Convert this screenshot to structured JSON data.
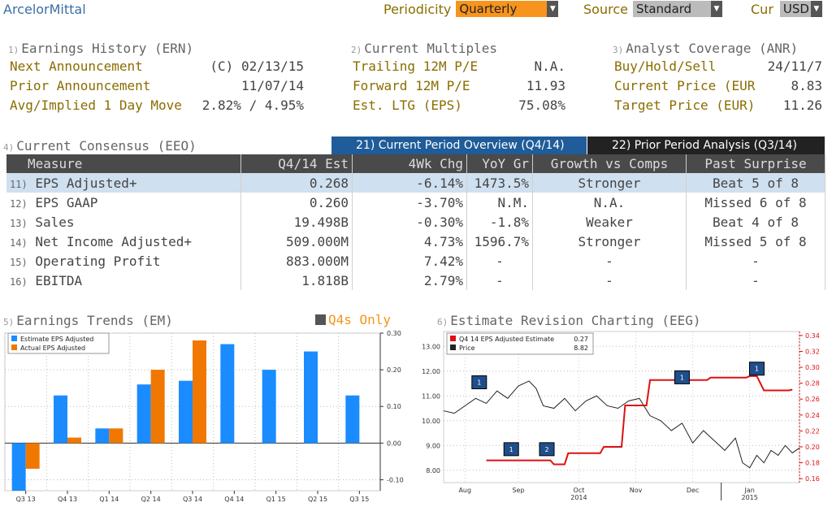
{
  "header": {
    "brand": "ArcelorMittal",
    "periodicity_label": "Periodicity",
    "periodicity_value": "Quarterly",
    "source_label": "Source",
    "source_value": "Standard",
    "cur_label": "Cur",
    "cur_value": "USD"
  },
  "ern": {
    "idx": "1)",
    "title": "Earnings History (ERN)",
    "rows": [
      {
        "label": "Next Announcement",
        "value": "(C)  02/13/15"
      },
      {
        "label": "Prior Announcement",
        "value": "11/07/14"
      },
      {
        "label": "Avg/Implied 1 Day Move",
        "value": "2.82% / 4.95%"
      }
    ]
  },
  "multiples": {
    "idx": "2)",
    "title": "Current Multiples",
    "rows": [
      {
        "label": "Trailing 12M P/E",
        "value": "N.A."
      },
      {
        "label": "Forward 12M P/E",
        "value": "11.93"
      },
      {
        "label": "Est. LTG (EPS)",
        "value": "75.08%"
      }
    ]
  },
  "anr": {
    "idx": "3)",
    "title": "Analyst Coverage (ANR)",
    "rows": [
      {
        "label": "Buy/Hold/Sell",
        "value": "24/11/7"
      },
      {
        "label": "Current Price (EUR",
        "value": "8.83"
      },
      {
        "label": "Target Price (EUR)",
        "value": "11.26"
      }
    ]
  },
  "consensus": {
    "idx": "4)",
    "title": "Current Consensus (EEO)",
    "tab_current": "21) Current Period Overview (Q4/14)",
    "tab_prior": "22) Prior Period Analysis (Q3/14)",
    "columns": [
      "Measure",
      "Q4/14 Est",
      "4Wk Chg",
      "YoY Gr",
      "Growth vs Comps",
      "Past Surprise"
    ],
    "rows": [
      {
        "num": "11)",
        "measure": "EPS Adjusted+",
        "est": "0.268",
        "chg": "-6.14%",
        "yoy": "1473.5%",
        "comps": "Stronger",
        "surprise": "Beat 5 of 8"
      },
      {
        "num": "12)",
        "measure": "EPS GAAP",
        "est": "0.260",
        "chg": "-3.70%",
        "yoy": "N.M.",
        "comps": "N.A.",
        "surprise": "Missed 6 of 8"
      },
      {
        "num": "13)",
        "measure": "Sales",
        "est": "19.498B",
        "chg": "-0.30%",
        "yoy": "-1.8%",
        "comps": "Weaker",
        "surprise": "Beat 4 of 8"
      },
      {
        "num": "14)",
        "measure": "Net Income Adjusted+",
        "est": "509.000M",
        "chg": "4.73%",
        "yoy": "1596.7%",
        "comps": "Stronger",
        "surprise": "Missed 5 of 8"
      },
      {
        "num": "15)",
        "measure": "Operating Profit",
        "est": "883.000M",
        "chg": "7.42%",
        "yoy": "-",
        "comps": "-",
        "surprise": "-"
      },
      {
        "num": "16)",
        "measure": "EBITDA",
        "est": "1.818B",
        "chg": "2.79%",
        "yoy": "-",
        "comps": "-",
        "surprise": "-"
      }
    ]
  },
  "trends": {
    "idx": "5)",
    "title": "Earnings Trends (EM)",
    "q4_label": "Q4s Only"
  },
  "revision": {
    "idx": "6)",
    "title": "Estimate Revision Charting (EEG)"
  },
  "colors": {
    "estimate": "#1a8cff",
    "actual": "#f07800",
    "eps_line": "#d11",
    "price_line": "#222",
    "accent": "#f7941d"
  },
  "chart_data": [
    {
      "type": "bar",
      "categories": [
        "Q3 13",
        "Q4 13",
        "Q1 14",
        "Q2 14",
        "Q3 14",
        "Q4 14",
        "Q1 15",
        "Q2 15",
        "Q3 15"
      ],
      "series": [
        {
          "name": "Estimate EPS Adjusted",
          "values": [
            -0.13,
            0.13,
            0.04,
            0.16,
            0.17,
            0.27,
            0.2,
            0.25,
            0.13
          ]
        },
        {
          "name": "Actual EPS Adjusted",
          "values": [
            -0.07,
            0.015,
            0.04,
            0.2,
            0.28,
            null,
            null,
            null,
            null
          ]
        }
      ],
      "ylim": [
        -0.13,
        0.3
      ],
      "yticks": [
        "0.30",
        "0.20",
        "0.10",
        "0.00",
        "-0.10"
      ],
      "ytick_values": [
        0.3,
        0.2,
        0.1,
        0.0,
        -0.1
      ]
    },
    {
      "type": "line",
      "legend": [
        {
          "name": "Q4 14 EPS Adjusted Estimate",
          "value": "0.27"
        },
        {
          "name": "Price",
          "value": "8.82"
        }
      ],
      "x_labels": [
        "Aug",
        "Sep",
        "Oct",
        "Nov",
        "Dec",
        "Jan"
      ],
      "year_labels": [
        "2014",
        "2015"
      ],
      "left_axis": {
        "ticks": [
          "13.00",
          "12.00",
          "11.00",
          "10.00",
          "9.00",
          "8.00"
        ],
        "values": [
          13,
          12,
          11,
          10,
          9,
          8
        ],
        "range": [
          7.5,
          13.6
        ]
      },
      "right_axis": {
        "ticks": [
          "0.34",
          "0.32",
          "0.30",
          "0.28",
          "0.26",
          "0.24",
          "0.22",
          "0.20",
          "0.18",
          "0.16"
        ],
        "values": [
          0.34,
          0.32,
          0.3,
          0.28,
          0.26,
          0.24,
          0.22,
          0.2,
          0.18,
          0.16
        ],
        "range": [
          0.155,
          0.345
        ]
      },
      "eps_series": [
        {
          "d": 0.12,
          "v": 0.183
        },
        {
          "d": 0.3,
          "v": 0.183
        },
        {
          "d": 0.31,
          "v": 0.178
        },
        {
          "d": 0.34,
          "v": 0.178
        },
        {
          "d": 0.35,
          "v": 0.192
        },
        {
          "d": 0.44,
          "v": 0.192
        },
        {
          "d": 0.45,
          "v": 0.2
        },
        {
          "d": 0.5,
          "v": 0.2
        },
        {
          "d": 0.51,
          "v": 0.252
        },
        {
          "d": 0.57,
          "v": 0.252
        },
        {
          "d": 0.58,
          "v": 0.284
        },
        {
          "d": 0.74,
          "v": 0.284
        },
        {
          "d": 0.75,
          "v": 0.287
        },
        {
          "d": 0.85,
          "v": 0.287
        },
        {
          "d": 0.86,
          "v": 0.289
        },
        {
          "d": 0.88,
          "v": 0.289
        },
        {
          "d": 0.9,
          "v": 0.271
        },
        {
          "d": 0.97,
          "v": 0.271
        },
        {
          "d": 0.98,
          "v": 0.272
        }
      ],
      "price_series": [
        {
          "d": 0.0,
          "v": 10.4
        },
        {
          "d": 0.03,
          "v": 10.3
        },
        {
          "d": 0.06,
          "v": 10.6
        },
        {
          "d": 0.09,
          "v": 10.9
        },
        {
          "d": 0.12,
          "v": 10.7
        },
        {
          "d": 0.15,
          "v": 11.2
        },
        {
          "d": 0.18,
          "v": 10.9
        },
        {
          "d": 0.21,
          "v": 11.4
        },
        {
          "d": 0.24,
          "v": 11.6
        },
        {
          "d": 0.26,
          "v": 11.3
        },
        {
          "d": 0.28,
          "v": 10.6
        },
        {
          "d": 0.31,
          "v": 10.5
        },
        {
          "d": 0.34,
          "v": 10.9
        },
        {
          "d": 0.37,
          "v": 10.4
        },
        {
          "d": 0.4,
          "v": 10.8
        },
        {
          "d": 0.43,
          "v": 11.0
        },
        {
          "d": 0.46,
          "v": 10.6
        },
        {
          "d": 0.49,
          "v": 10.5
        },
        {
          "d": 0.52,
          "v": 10.8
        },
        {
          "d": 0.55,
          "v": 10.9
        },
        {
          "d": 0.58,
          "v": 10.2
        },
        {
          "d": 0.61,
          "v": 10.0
        },
        {
          "d": 0.64,
          "v": 9.6
        },
        {
          "d": 0.67,
          "v": 9.9
        },
        {
          "d": 0.7,
          "v": 9.1
        },
        {
          "d": 0.73,
          "v": 9.6
        },
        {
          "d": 0.76,
          "v": 9.2
        },
        {
          "d": 0.79,
          "v": 8.8
        },
        {
          "d": 0.82,
          "v": 9.3
        },
        {
          "d": 0.84,
          "v": 8.3
        },
        {
          "d": 0.86,
          "v": 8.1
        },
        {
          "d": 0.88,
          "v": 8.6
        },
        {
          "d": 0.9,
          "v": 8.3
        },
        {
          "d": 0.92,
          "v": 8.8
        },
        {
          "d": 0.94,
          "v": 8.6
        },
        {
          "d": 0.96,
          "v": 9.0
        },
        {
          "d": 0.98,
          "v": 8.7
        },
        {
          "d": 1.0,
          "v": 8.9
        }
      ],
      "markers": [
        {
          "label": "1",
          "d": 0.1,
          "v": 11.55
        },
        {
          "label": "1",
          "d": 0.19,
          "v": 8.85
        },
        {
          "label": "2",
          "d": 0.29,
          "v": 8.85
        },
        {
          "label": "1",
          "d": 0.67,
          "v": 11.75
        },
        {
          "label": "1",
          "d": 0.88,
          "v": 12.1
        }
      ]
    }
  ]
}
